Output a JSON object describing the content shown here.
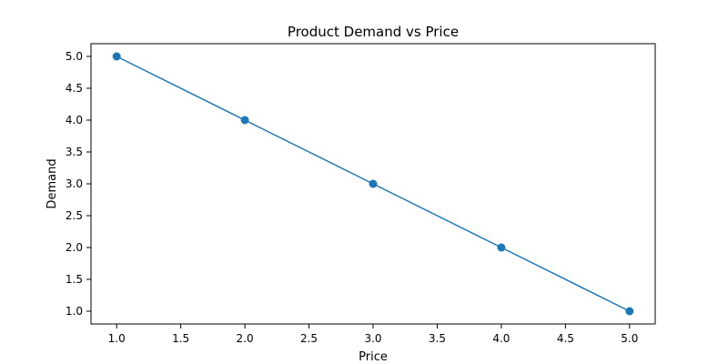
{
  "chart_data": {
    "type": "line",
    "title": "Product Demand vs Price",
    "xlabel": "Price",
    "ylabel": "Demand",
    "x": [
      1.0,
      2.0,
      3.0,
      4.0,
      5.0
    ],
    "series": [
      {
        "values": [
          5.0,
          4.0,
          3.0,
          2.0,
          1.0
        ],
        "color": "#1f77b4",
        "markers": true
      }
    ],
    "xlim": [
      0.8,
      5.2
    ],
    "ylim": [
      0.8,
      5.2
    ],
    "xticks": [
      1.0,
      1.5,
      2.0,
      2.5,
      3.0,
      3.5,
      4.0,
      4.5,
      5.0
    ],
    "yticks": [
      1.0,
      1.5,
      2.0,
      2.5,
      3.0,
      3.5,
      4.0,
      4.5,
      5.0
    ],
    "xtick_labels": [
      "1.0",
      "1.5",
      "2.0",
      "2.5",
      "3.0",
      "3.5",
      "4.0",
      "4.5",
      "5.0"
    ],
    "ytick_labels": [
      "1.0",
      "1.5",
      "2.0",
      "2.5",
      "3.0",
      "3.5",
      "4.0",
      "4.5",
      "5.0"
    ],
    "grid": false,
    "legend": "none"
  }
}
